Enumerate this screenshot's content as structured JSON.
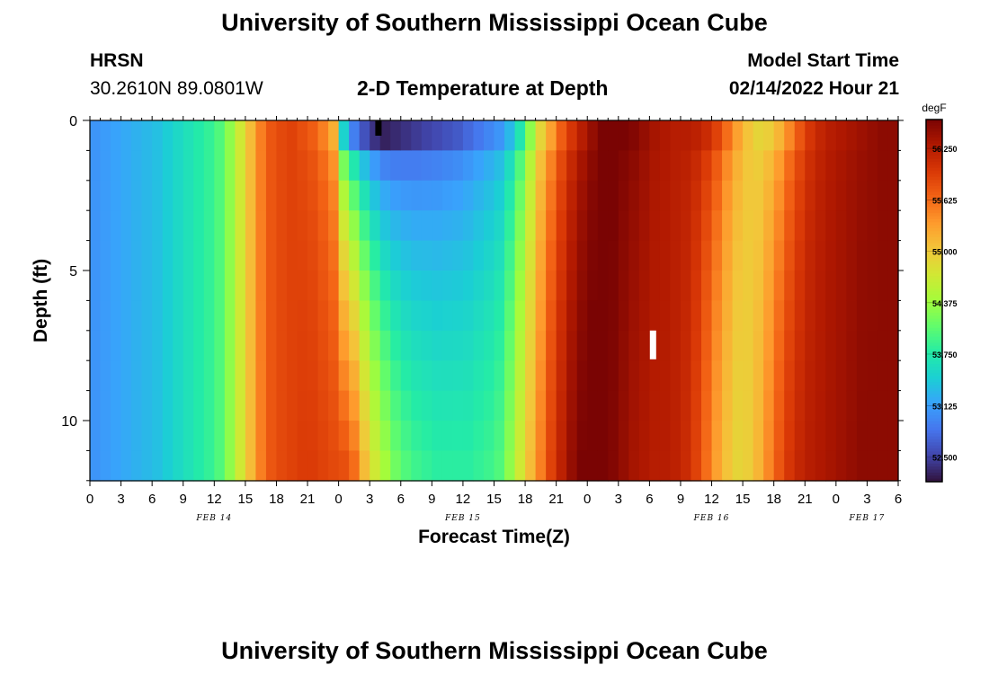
{
  "page": {
    "title": "University of Southern Mississippi Ocean Cube",
    "footer_title": "University of Southern Mississippi Ocean Cube",
    "station_id": "HRSN",
    "station_coords": "30.2610N  89.0801W",
    "subtitle": "2-D Temperature at Depth",
    "model_start_label": "Model Start Time",
    "model_start_value": "02/14/2022 Hour 21"
  },
  "chart_data": {
    "type": "heatmap",
    "title": "2-D Temperature at Depth",
    "xlabel": "Forecast Time(Z)",
    "ylabel": "Depth (ft)",
    "x_tick_labels": [
      "0",
      "3",
      "6",
      "9",
      "12",
      "15",
      "18",
      "21",
      "0",
      "3",
      "6",
      "9",
      "12",
      "15",
      "18",
      "21",
      "0",
      "3",
      "6",
      "9",
      "12",
      "15",
      "18",
      "21",
      "0",
      "3",
      "6"
    ],
    "x_hours_range": [
      0,
      78
    ],
    "date_labels": [
      {
        "hour": 12,
        "label": "FEB 14"
      },
      {
        "hour": 36,
        "label": "FEB 15"
      },
      {
        "hour": 60,
        "label": "FEB 16"
      },
      {
        "hour": 75,
        "label": "FEB 17"
      }
    ],
    "y_ticks": [
      0,
      5,
      10
    ],
    "ylim": [
      0,
      12
    ],
    "y_reversed": true,
    "colorbar": {
      "unit": "degF",
      "ticks": [
        "56.250",
        "55.625",
        "55.000",
        "54.375",
        "53.750",
        "53.125",
        "52.500"
      ],
      "range": [
        52.2,
        56.6
      ],
      "colors": [
        "#30123b",
        "#4145ab",
        "#4675ed",
        "#39a2fc",
        "#1bcfd4",
        "#24eca6",
        "#61fc6c",
        "#a4fc3b",
        "#d1e834",
        "#f3c63a",
        "#fe9b2d",
        "#f36315",
        "#d93806",
        "#b11901",
        "#7a0403"
      ]
    },
    "depth_levels_ft": [
      0,
      1,
      2,
      3,
      4,
      5,
      6,
      7,
      8,
      9,
      10,
      11
    ],
    "time_hours": [
      0,
      1,
      2,
      3,
      4,
      5,
      6,
      7,
      8,
      9,
      10,
      11,
      12,
      13,
      14,
      15,
      16,
      17,
      18,
      19,
      20,
      21,
      22,
      23,
      24,
      25,
      26,
      27,
      28,
      29,
      30,
      31,
      32,
      33,
      34,
      35,
      36,
      37,
      38,
      39,
      40,
      41,
      42,
      43,
      44,
      45,
      46,
      47,
      48,
      49,
      50,
      51,
      52,
      53,
      54,
      55,
      56,
      57,
      58,
      59,
      60,
      61,
      62,
      63,
      64,
      65,
      66,
      67,
      68,
      69,
      70,
      71,
      72,
      73,
      74,
      75,
      76,
      77
    ],
    "surface_profile_degF": [
      53.05,
      53.1,
      53.15,
      53.2,
      53.25,
      53.3,
      53.35,
      53.45,
      53.55,
      53.65,
      53.75,
      53.85,
      54.0,
      54.3,
      54.7,
      55.1,
      55.5,
      55.75,
      55.85,
      55.9,
      55.8,
      55.7,
      55.5,
      55.2,
      53.5,
      52.9,
      52.6,
      52.4,
      52.3,
      52.35,
      52.4,
      52.45,
      52.5,
      52.55,
      52.6,
      52.65,
      52.75,
      52.85,
      52.95,
      53.05,
      53.3,
      53.7,
      54.3,
      54.9,
      55.3,
      55.7,
      56.0,
      56.25,
      56.45,
      56.6,
      56.65,
      56.6,
      56.55,
      56.45,
      56.35,
      56.3,
      56.25,
      56.25,
      56.2,
      56.1,
      55.9,
      55.6,
      55.3,
      55.05,
      54.9,
      54.95,
      55.15,
      55.45,
      55.75,
      56.0,
      56.15,
      56.25,
      56.3,
      56.35,
      56.4,
      56.45,
      56.5,
      56.5
    ],
    "bottom_profile_degF": [
      53.05,
      53.1,
      53.15,
      53.2,
      53.25,
      53.3,
      53.35,
      53.45,
      53.55,
      53.65,
      53.75,
      53.85,
      54.0,
      54.3,
      54.7,
      55.1,
      55.5,
      55.75,
      55.85,
      55.9,
      55.95,
      55.95,
      55.9,
      55.85,
      55.8,
      55.6,
      55.1,
      54.7,
      54.4,
      54.15,
      54.0,
      53.9,
      53.85,
      53.8,
      53.8,
      53.8,
      53.8,
      53.85,
      53.9,
      54.0,
      54.3,
      54.7,
      55.1,
      55.5,
      55.9,
      56.2,
      56.45,
      56.6,
      56.65,
      56.6,
      56.55,
      56.45,
      56.35,
      56.3,
      56.25,
      56.25,
      56.2,
      56.1,
      55.9,
      55.6,
      55.3,
      55.05,
      54.9,
      54.95,
      55.15,
      55.45,
      55.75,
      56.0,
      56.15,
      56.25,
      56.3,
      56.35,
      56.4,
      56.45,
      56.5,
      56.5,
      56.5,
      56.5
    ],
    "annotation_markers": [
      {
        "hour": 27.8,
        "depth_ft": 0,
        "color": "#000000"
      },
      {
        "hour": 54.3,
        "depth_ft": 7.0,
        "color": "#ffffff"
      }
    ]
  }
}
